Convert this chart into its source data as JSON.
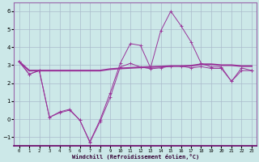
{
  "title": "",
  "xlabel": "Windchill (Refroidissement éolien,°C)",
  "background_color": "#cce8e8",
  "grid_color": "#aabbcc",
  "line_color": "#993399",
  "x_hours": [
    0,
    1,
    2,
    3,
    4,
    5,
    6,
    7,
    8,
    9,
    10,
    11,
    12,
    13,
    14,
    15,
    16,
    17,
    18,
    19,
    20,
    21,
    22,
    23
  ],
  "series1": [
    3.2,
    2.5,
    2.7,
    0.1,
    0.4,
    0.55,
    -0.05,
    -1.25,
    -0.05,
    1.45,
    3.1,
    4.2,
    4.1,
    2.85,
    4.9,
    6.0,
    5.2,
    4.3,
    3.1,
    2.9,
    2.9,
    2.1,
    2.85,
    2.7
  ],
  "series2": [
    3.2,
    2.7,
    2.7,
    2.7,
    2.7,
    2.7,
    2.7,
    2.7,
    2.7,
    2.78,
    2.82,
    2.85,
    2.88,
    2.9,
    2.92,
    2.95,
    2.95,
    2.97,
    3.05,
    3.05,
    3.0,
    3.0,
    2.95,
    2.95
  ],
  "series3": [
    3.2,
    2.5,
    2.7,
    0.1,
    0.35,
    0.5,
    -0.05,
    -1.3,
    -0.15,
    1.2,
    2.9,
    3.1,
    2.9,
    2.8,
    2.85,
    2.95,
    2.95,
    2.85,
    2.92,
    2.82,
    2.82,
    2.1,
    2.7,
    2.7
  ],
  "ylim": [
    -1.5,
    6.5
  ],
  "yticks": [
    -1,
    0,
    1,
    2,
    3,
    4,
    5,
    6
  ],
  "xlim": [
    -0.5,
    23.5
  ],
  "figsize": [
    3.2,
    2.0
  ],
  "dpi": 100,
  "xlabel_color": "#330033",
  "spine_color": "#9966aa"
}
